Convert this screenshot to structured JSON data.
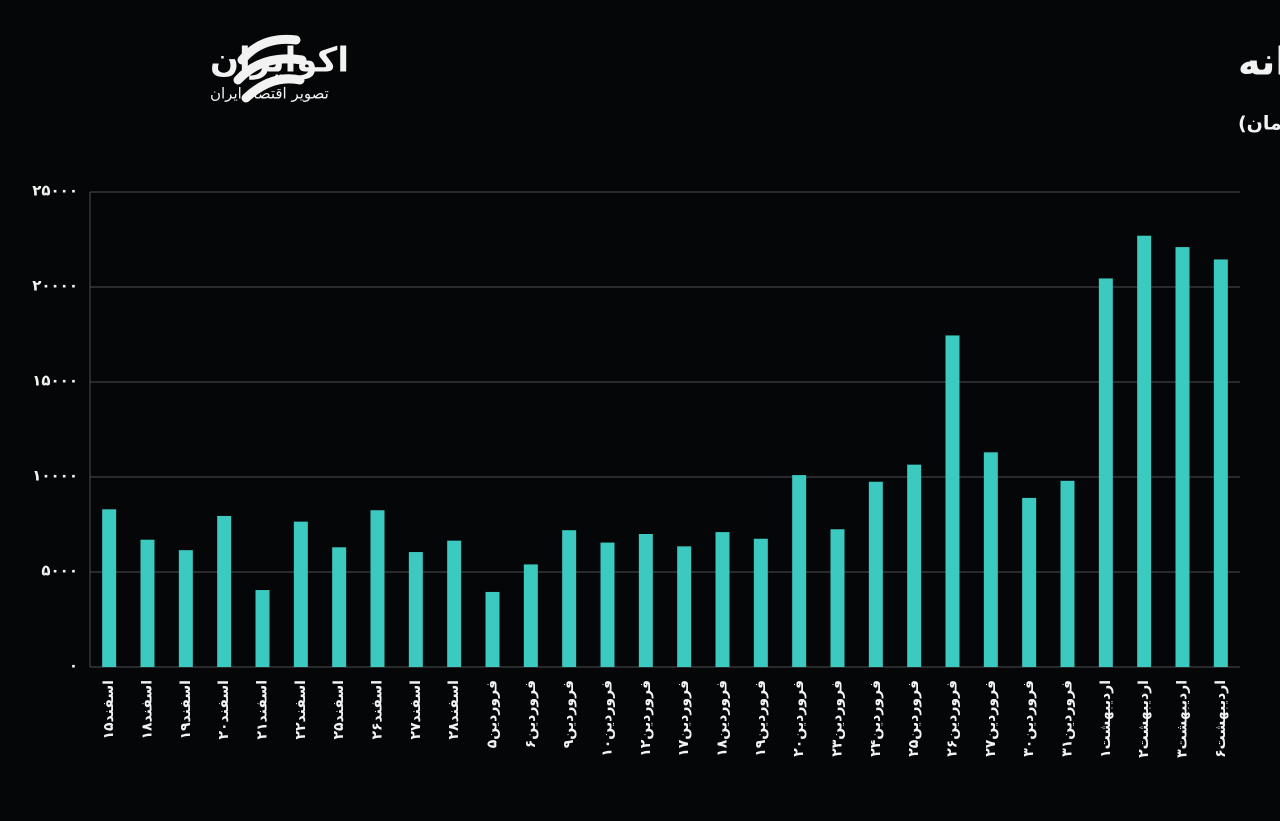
{
  "logo": {
    "name": "اکوایران",
    "tagline": "تصویر اقتصاد ایران"
  },
  "chart_data": {
    "type": "bar",
    "title": "روند ارزش معاملات خرد روزانه",
    "subtitle": "(واحد: میلیارد تومان)",
    "categories": [
      "اسفند۱۵",
      "اسفند۱۸",
      "اسفند۱۹",
      "اسفند۲۰",
      "اسفند۲۱",
      "اسفند۲۲",
      "اسفند۲۵",
      "اسفند۲۶",
      "اسفند۲۷",
      "اسفند۲۸",
      "فروردین۵",
      "فروردین۶",
      "فروردین۹",
      "فروردین۱۰",
      "فروردین۱۲",
      "فروردین۱۷",
      "فروردین۱۸",
      "فروردین۱۹",
      "فروردین۲۰",
      "فروردین۲۳",
      "فروردین۲۴",
      "فروردین۲۵",
      "فروردین۲۶",
      "فروردین۲۷",
      "فروردین۳۰",
      "فروردین۳۱",
      "اردیبهشت۱",
      "اردیبهشت۲",
      "اردیبهشت۳",
      "اردیبهشت۶"
    ],
    "values": [
      8300,
      6700,
      6150,
      7950,
      4050,
      7650,
      6300,
      8250,
      6050,
      6650,
      3950,
      5400,
      7200,
      6550,
      7000,
      6350,
      7100,
      6750,
      10100,
      7250,
      9750,
      10650,
      17450,
      11300,
      8900,
      9800,
      20450,
      22700,
      22100,
      21450
    ],
    "color": "#3cc9bf",
    "ylim": [
      0,
      25000
    ],
    "yticks": [
      {
        "value": 0,
        "label": "۰"
      },
      {
        "value": 5000,
        "label": "۵۰۰۰"
      },
      {
        "value": 10000,
        "label": "۱۰۰۰۰"
      },
      {
        "value": 15000,
        "label": "۱۵۰۰۰"
      },
      {
        "value": 20000,
        "label": "۲۰۰۰۰"
      },
      {
        "value": 25000,
        "label": "۲۵۰۰۰"
      }
    ],
    "grid": true
  }
}
